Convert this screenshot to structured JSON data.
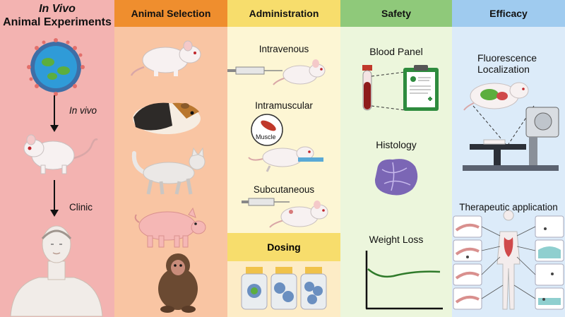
{
  "columns": {
    "invivo": {
      "title_italic": "In Vivo",
      "title": "Animal Experiments",
      "step1": "In vivo",
      "step2": "Clinic",
      "bg": "#f3b3b1"
    },
    "selection": {
      "title": "Animal Selection",
      "header_bg": "#ef8e2e",
      "bg": "#f9c5a3"
    },
    "administration": {
      "title": "Administration",
      "header_bg": "#f7dd6c",
      "bg": "#fdf6d4",
      "routes": [
        "Intravenous",
        "Intramuscular",
        "Subcutaneous"
      ],
      "muscle_label": "Muscle",
      "dosing": "Dosing",
      "dosing_header_bg": "#f7dd6c",
      "dosing_bg": "#fdecc6"
    },
    "safety": {
      "title": "Safety",
      "header_bg": "#8fc97a",
      "bg": "#ecf6dc",
      "items": [
        "Blood Panel",
        "Histology",
        "Weight Loss"
      ]
    },
    "efficacy": {
      "title": "Efficacy",
      "header_bg": "#9fcbef",
      "bg": "#dcebf9",
      "fluorescence": "Fluorescence Localization",
      "fluor_line1": "Fluorescence",
      "fluor_line2": "Localization",
      "therapeutic": "Therapeutic application"
    }
  },
  "icons": [
    "nanoparticle-icon",
    "mouse-icon",
    "human-icon",
    "rat-icon",
    "guinea-pig-icon",
    "cat-icon",
    "pig-icon",
    "monkey-icon",
    "syringe-icon",
    "muscle-icon",
    "vial-icon",
    "blood-tube-icon",
    "clipboard-icon",
    "tissue-icon",
    "weight-chart-icon",
    "imaging-device-icon"
  ]
}
